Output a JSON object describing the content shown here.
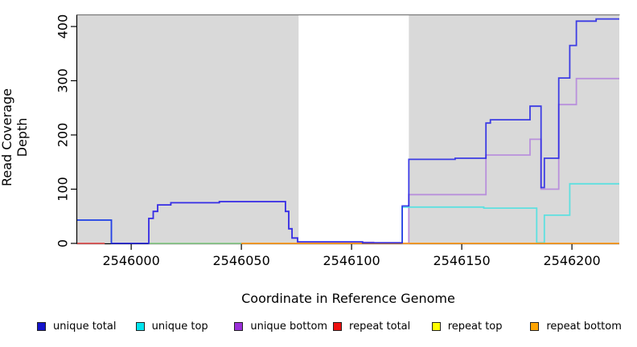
{
  "figure": {
    "xlabel": "Coordinate in Reference Genome",
    "ylabel": "Read Coverage Depth"
  },
  "chart_data": {
    "type": "line",
    "subtype": "step-coverage-plot",
    "xlabel": "Coordinate in Reference Genome",
    "ylabel": "Read Coverage Depth",
    "xlim": [
      2545975.5,
      2546221.5
    ],
    "ylim": [
      0,
      420
    ],
    "x_ticks": [
      2546000,
      2546050,
      2546100,
      2546150,
      2546200
    ],
    "y_ticks": [
      0,
      100,
      200,
      300,
      400
    ],
    "grid": false,
    "panel_background": "#d9d9d9",
    "masked_region": {
      "x_start": 2546076,
      "x_end": 2546126,
      "fill": "#ffffff"
    },
    "legend_position": "bottom",
    "series": [
      {
        "name": "unique total",
        "legend_color": "#1414cc",
        "line_color": "#1a1ae6",
        "opacity": 0.82,
        "points": [
          [
            2545975.5,
            43
          ],
          [
            2545991,
            0
          ],
          [
            2546008,
            46
          ],
          [
            2546010,
            59
          ],
          [
            2546012,
            71
          ],
          [
            2546018,
            75
          ],
          [
            2546040,
            77
          ],
          [
            2546070,
            59
          ],
          [
            2546071.5,
            27
          ],
          [
            2546073,
            10
          ],
          [
            2546075.5,
            3
          ],
          [
            2546105,
            1
          ],
          [
            2546123,
            69
          ],
          [
            2546126,
            155
          ],
          [
            2546147,
            157
          ],
          [
            2546161,
            222
          ],
          [
            2546163,
            228
          ],
          [
            2546181,
            253
          ],
          [
            2546186,
            103
          ],
          [
            2546187.5,
            157
          ],
          [
            2546194,
            305
          ],
          [
            2546199,
            365
          ],
          [
            2546202,
            410
          ],
          [
            2546211,
            414
          ],
          [
            2546221.5,
            414
          ]
        ]
      },
      {
        "name": "unique top",
        "legend_color": "#00e5ee",
        "line_color": "#5ee0e0",
        "opacity": 1,
        "points": [
          [
            2545975.5,
            43
          ],
          [
            2545991,
            0
          ],
          [
            2545992,
            null
          ],
          [
            2546122.8,
            0
          ],
          [
            2546123,
            67
          ],
          [
            2546160,
            65
          ],
          [
            2546184,
            1
          ],
          [
            2546187.5,
            52
          ],
          [
            2546199,
            110
          ],
          [
            2546221.5,
            110
          ]
        ]
      },
      {
        "name": "unique bottom",
        "legend_color": "#9b30d9",
        "line_color": "#b990dc",
        "opacity": 1,
        "points": [
          [
            2546007.8,
            0
          ],
          [
            2546008,
            46
          ],
          [
            2546010,
            59
          ],
          [
            2546012,
            71
          ],
          [
            2546018,
            75
          ],
          [
            2546040,
            77
          ],
          [
            2546070,
            59
          ],
          [
            2546071.5,
            27
          ],
          [
            2546073,
            10
          ],
          [
            2546075.5,
            2
          ],
          [
            2546110,
            1
          ],
          [
            2546123,
            0
          ],
          [
            2546126,
            90
          ],
          [
            2546161,
            163
          ],
          [
            2546181,
            192
          ],
          [
            2546186,
            100
          ],
          [
            2546194,
            256
          ],
          [
            2546202,
            304
          ],
          [
            2546221.5,
            304
          ]
        ]
      },
      {
        "name": "repeat total",
        "legend_color": "#ee1111",
        "line_color": "#e05555",
        "opacity": 1,
        "points": [
          [
            2545975.5,
            0
          ],
          [
            2545988,
            0
          ]
        ]
      },
      {
        "name": "repeat top",
        "legend_color": "#ffff00",
        "line_color": "#8fce8f",
        "opacity": 1,
        "note": "visible only blended with unique-top along zero baseline",
        "points": [
          [
            2546008,
            0
          ],
          [
            2546050,
            0
          ]
        ]
      },
      {
        "name": "repeat bottom",
        "legend_color": "#ffa500",
        "line_color": "#ff9d1e",
        "opacity": 1,
        "points": [
          [
            2546050,
            0
          ],
          [
            2546221.5,
            0
          ]
        ]
      }
    ],
    "draw_order": [
      "unique bottom",
      "unique top",
      "repeat top",
      "repeat total",
      "repeat bottom",
      "unique total"
    ],
    "legend_order": [
      "unique total",
      "unique top",
      "unique bottom",
      "repeat total",
      "repeat top",
      "repeat bottom"
    ]
  }
}
